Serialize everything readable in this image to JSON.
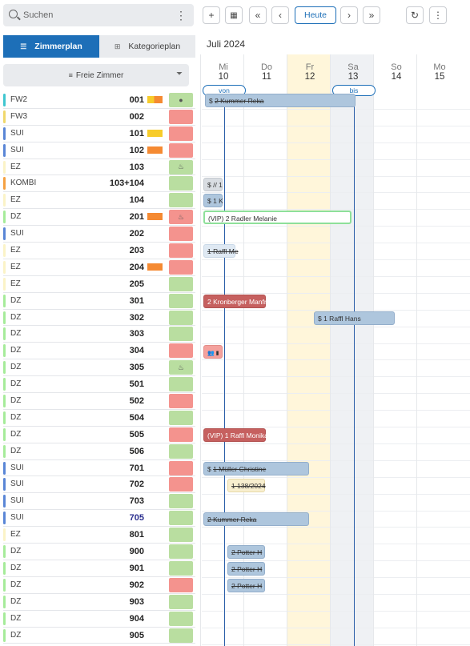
{
  "search": {
    "placeholder": "Suchen"
  },
  "tabs": {
    "room_plan": "Zimmerplan",
    "category_plan": "Kategorieplan"
  },
  "free_rooms_label": "Freie Zimmer",
  "toolbar": {
    "today_label": "Heute"
  },
  "calendar": {
    "month": "Juli 2024",
    "days": [
      {
        "name": "Mi",
        "date": "10"
      },
      {
        "name": "Do",
        "date": "11"
      },
      {
        "name": "Fr",
        "date": "12"
      },
      {
        "name": "Sa",
        "date": "13"
      },
      {
        "name": "So",
        "date": "14"
      },
      {
        "name": "Mo",
        "date": "15"
      }
    ],
    "from_label": "von",
    "to_label": "bis"
  },
  "colors": {
    "accent": "#1d6fb8",
    "status_green": "#b9dea0",
    "status_red": "#f4938e",
    "flag_yellow": "#f7cc2a",
    "flag_orange": "#f58a32",
    "friday_bg": "#fff6da",
    "saturday_bg": "#eff1f4"
  },
  "rooms": [
    {
      "cat": "FW2",
      "num": "001",
      "stripe": "#3fc6d0",
      "flags": [
        "#f7cc2a",
        "#f58a32"
      ],
      "status": "green",
      "status_icon": "●"
    },
    {
      "cat": "FW3",
      "num": "002",
      "stripe": "#f0d86b",
      "flags": [],
      "status": "red",
      "status_icon": ""
    },
    {
      "cat": "SUI",
      "num": "101",
      "stripe": "#5a86d6",
      "flags": [
        "#f7cc2a"
      ],
      "status": "red",
      "status_icon": ""
    },
    {
      "cat": "SUI",
      "num": "102",
      "stripe": "#5a86d6",
      "flags": [
        "#f58a32"
      ],
      "status": "red",
      "status_icon": ""
    },
    {
      "cat": "EZ",
      "num": "103",
      "stripe": "#fbf3c7",
      "flags": [],
      "status": "green",
      "status_icon": "♨"
    },
    {
      "cat": "KOMBI",
      "num": "103+104",
      "stripe": "#f5a142",
      "flags": [],
      "status": "green",
      "status_icon": ""
    },
    {
      "cat": "EZ",
      "num": "104",
      "stripe": "#fbf3c7",
      "flags": [],
      "status": "green",
      "status_icon": ""
    },
    {
      "cat": "DZ",
      "num": "201",
      "stripe": "#a6eb9a",
      "flags": [
        "#f58a32"
      ],
      "status": "red",
      "status_icon": "♨"
    },
    {
      "cat": "SUI",
      "num": "202",
      "stripe": "#5a86d6",
      "flags": [],
      "status": "red",
      "status_icon": ""
    },
    {
      "cat": "EZ",
      "num": "203",
      "stripe": "#fbf3c7",
      "flags": [],
      "status": "red",
      "status_icon": ""
    },
    {
      "cat": "EZ",
      "num": "204",
      "stripe": "#fbf3c7",
      "flags": [
        "#f58a32"
      ],
      "status": "red",
      "status_icon": ""
    },
    {
      "cat": "EZ",
      "num": "205",
      "stripe": "#fbf3c7",
      "flags": [],
      "status": "green",
      "status_icon": ""
    },
    {
      "cat": "DZ",
      "num": "301",
      "stripe": "#a6eb9a",
      "flags": [],
      "status": "green",
      "status_icon": ""
    },
    {
      "cat": "DZ",
      "num": "302",
      "stripe": "#a6eb9a",
      "flags": [],
      "status": "green",
      "status_icon": ""
    },
    {
      "cat": "DZ",
      "num": "303",
      "stripe": "#a6eb9a",
      "flags": [],
      "status": "green",
      "status_icon": ""
    },
    {
      "cat": "DZ",
      "num": "304",
      "stripe": "#a6eb9a",
      "flags": [],
      "status": "red",
      "status_icon": ""
    },
    {
      "cat": "DZ",
      "num": "305",
      "stripe": "#a6eb9a",
      "flags": [],
      "status": "green",
      "status_icon": "♨"
    },
    {
      "cat": "DZ",
      "num": "501",
      "stripe": "#a6eb9a",
      "flags": [],
      "status": "green",
      "status_icon": ""
    },
    {
      "cat": "DZ",
      "num": "502",
      "stripe": "#a6eb9a",
      "flags": [],
      "status": "red",
      "status_icon": ""
    },
    {
      "cat": "DZ",
      "num": "504",
      "stripe": "#a6eb9a",
      "flags": [],
      "status": "green",
      "status_icon": ""
    },
    {
      "cat": "DZ",
      "num": "505",
      "stripe": "#a6eb9a",
      "flags": [],
      "status": "red",
      "status_icon": ""
    },
    {
      "cat": "DZ",
      "num": "506",
      "stripe": "#a6eb9a",
      "flags": [],
      "status": "green",
      "status_icon": ""
    },
    {
      "cat": "SUI",
      "num": "701",
      "stripe": "#5a86d6",
      "flags": [],
      "status": "red",
      "status_icon": ""
    },
    {
      "cat": "SUI",
      "num": "702",
      "stripe": "#5a86d6",
      "flags": [],
      "status": "red",
      "status_icon": ""
    },
    {
      "cat": "SUI",
      "num": "703",
      "stripe": "#5a86d6",
      "flags": [],
      "status": "green",
      "status_icon": ""
    },
    {
      "cat": "SUI",
      "num": "705",
      "stripe": "#5a86d6",
      "flags": [],
      "status": "green",
      "status_icon": "",
      "num_blue": true
    },
    {
      "cat": "EZ",
      "num": "801",
      "stripe": "#fbf3c7",
      "flags": [],
      "status": "green",
      "status_icon": ""
    },
    {
      "cat": "DZ",
      "num": "900",
      "stripe": "#a6eb9a",
      "flags": [],
      "status": "green",
      "status_icon": ""
    },
    {
      "cat": "DZ",
      "num": "901",
      "stripe": "#a6eb9a",
      "flags": [],
      "status": "green",
      "status_icon": ""
    },
    {
      "cat": "DZ",
      "num": "902",
      "stripe": "#a6eb9a",
      "flags": [],
      "status": "red",
      "status_icon": ""
    },
    {
      "cat": "DZ",
      "num": "903",
      "stripe": "#a6eb9a",
      "flags": [],
      "status": "green",
      "status_icon": ""
    },
    {
      "cat": "DZ",
      "num": "904",
      "stripe": "#a6eb9a",
      "flags": [],
      "status": "green",
      "status_icon": ""
    },
    {
      "cat": "DZ",
      "num": "905",
      "stripe": "#a6eb9a",
      "flags": [],
      "status": "green",
      "status_icon": ""
    }
  ],
  "bookings": [
    {
      "room": "001",
      "text": "$ 2 Kummer Reka",
      "style": "blue",
      "strike": "2 Kummer Reka"
    },
    {
      "room": "103+104",
      "text": "$ // 1",
      "style": "grey"
    },
    {
      "room": "104",
      "text": "$ 1 K",
      "style": "blue"
    },
    {
      "room": "201",
      "text": "(VIP) 2 Radler Melanie",
      "style": "white"
    },
    {
      "room": "203",
      "text": "1 Raffl Me",
      "style": "pale",
      "strike": "1 Raffl Me"
    },
    {
      "room": "301",
      "text": "2 Kronberger Manfr",
      "style": "red"
    },
    {
      "room": "302",
      "text": "$ 1 Raffl Hans",
      "style": "blue"
    },
    {
      "room": "304",
      "text": "",
      "style": "pink",
      "icons": true
    },
    {
      "room": "505",
      "text": "(VIP) 1 Raffl Monika",
      "style": "red"
    },
    {
      "room": "701",
      "text": "$ 1 Müller Christine",
      "style": "blue",
      "strike": "1 Müller Christine"
    },
    {
      "room": "702",
      "text": "1 138/2024",
      "style": "cream",
      "strike": "1 138/2024"
    },
    {
      "room": "705",
      "text": "2 Kummer Reka",
      "style": "blue",
      "strike": "2 Kummer Reka"
    },
    {
      "room": "900",
      "text": "2 Potter H",
      "style": "blue",
      "strike": "2 Potter H"
    },
    {
      "room": "901",
      "text": "2 Potter H",
      "style": "blue",
      "strike": "2 Potter H"
    },
    {
      "room": "902",
      "text": "2 Potter H",
      "style": "blue",
      "strike": "2 Potter H"
    }
  ]
}
